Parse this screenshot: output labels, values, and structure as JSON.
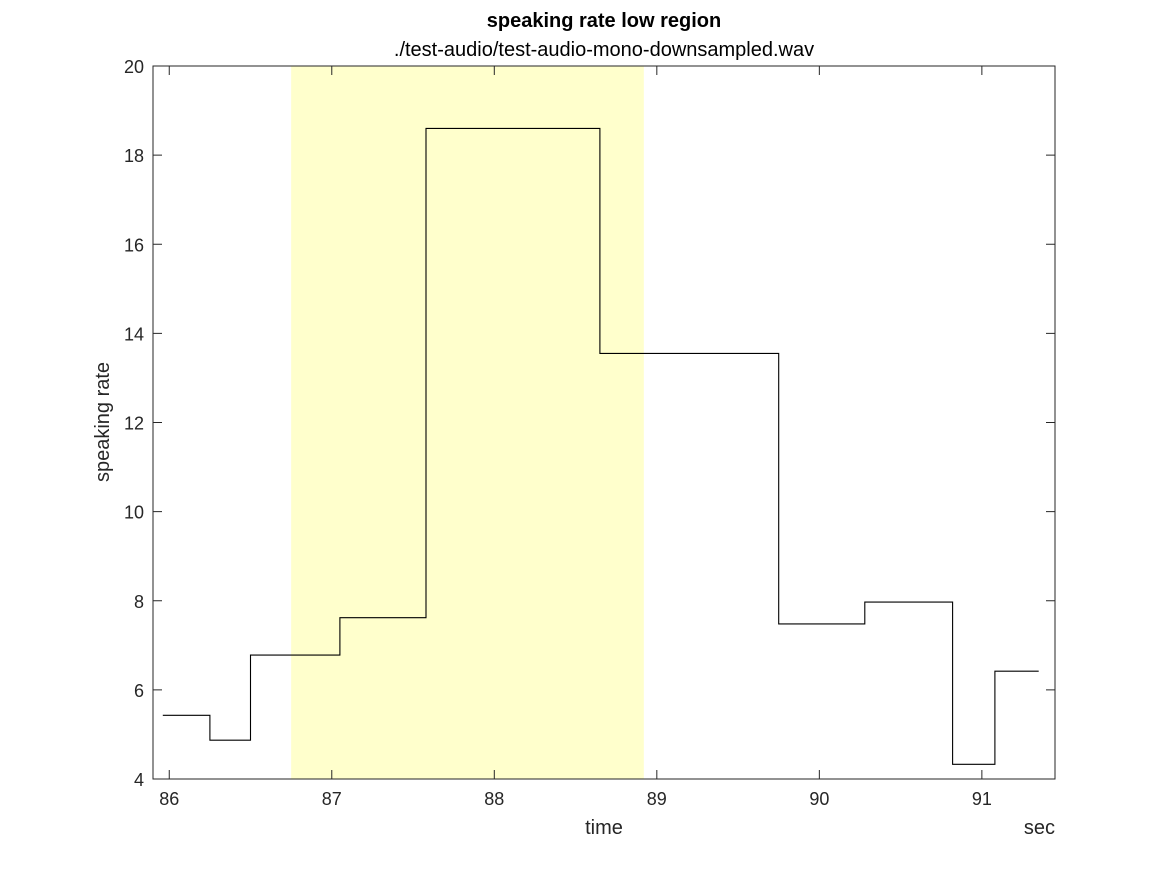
{
  "chart_data": {
    "type": "line",
    "title": "speaking rate low region",
    "subtitle": "./test-audio/test-audio-mono-downsampled.wav",
    "xlabel": "time",
    "xunit": "sec",
    "ylabel": "speaking rate",
    "xlim": [
      85.9,
      91.45
    ],
    "ylim": [
      4,
      20
    ],
    "xticks": [
      86,
      87,
      88,
      89,
      90,
      91
    ],
    "yticks": [
      4,
      6,
      8,
      10,
      12,
      14,
      16,
      18,
      20
    ],
    "highlight_region": {
      "x": [
        86.75,
        88.92
      ],
      "color": "#ffffcc"
    },
    "line_color": "#000000",
    "series": [
      {
        "x": [
          85.96,
          86.25,
          86.25,
          86.5,
          86.5,
          87.05,
          87.05,
          87.58,
          87.58,
          88.65,
          88.65,
          89.75,
          89.75,
          90.28,
          90.28,
          90.82,
          90.82,
          91.08,
          91.08,
          91.35
        ],
        "y": [
          5.43,
          5.43,
          4.87,
          4.87,
          6.78,
          6.78,
          7.62,
          7.62,
          18.6,
          18.6,
          13.55,
          13.55,
          7.48,
          7.48,
          7.97,
          7.97,
          4.33,
          4.33,
          6.42,
          6.42
        ]
      }
    ]
  }
}
